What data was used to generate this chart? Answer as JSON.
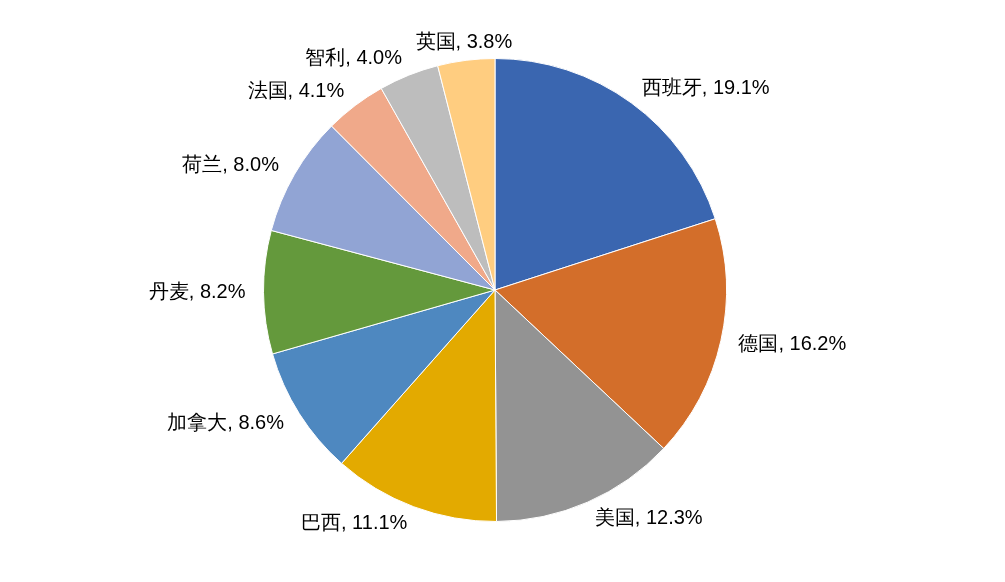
{
  "chart_data": {
    "type": "pie",
    "categories": [
      "西班牙",
      "德国",
      "美国",
      "巴西",
      "加拿大",
      "丹麦",
      "荷兰",
      "法国",
      "智利",
      "英国"
    ],
    "values": [
      19.1,
      16.2,
      12.3,
      11.1,
      8.6,
      8.2,
      8.0,
      4.1,
      4.0,
      3.8
    ],
    "value_labels": [
      "19.1%",
      "16.2%",
      "12.3%",
      "11.1%",
      "8.6%",
      "8.2%",
      "8.0%",
      "4.1%",
      "4.0%",
      "3.8%"
    ],
    "colors": [
      "#3a66b0",
      "#d36e2a",
      "#939393",
      "#e3aa00",
      "#4e88c0",
      "#64993c",
      "#91a4d4",
      "#f0a98a",
      "#bdbdbd",
      "#ffcd80"
    ],
    "legend": false
  }
}
